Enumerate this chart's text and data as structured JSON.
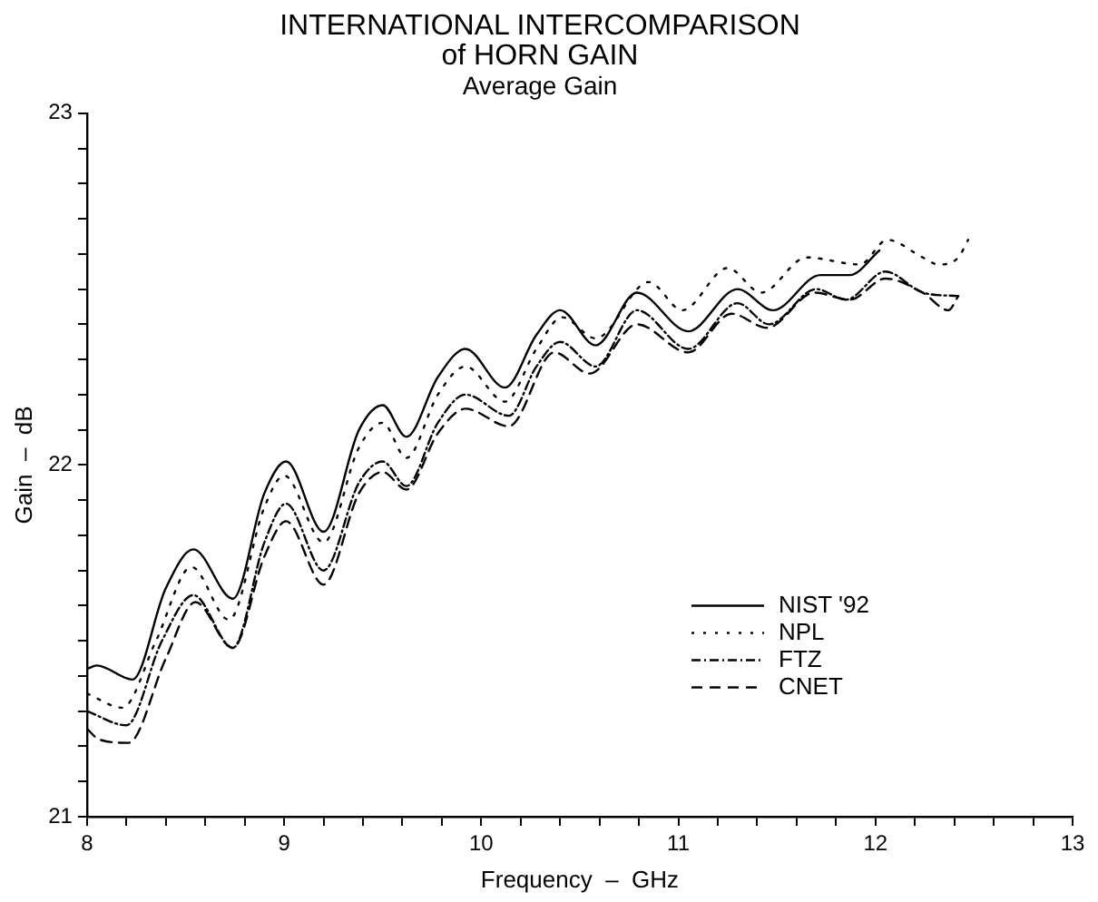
{
  "chart_data": {
    "type": "line",
    "title": "INTERNATIONAL INTERCOMPARISON\nof HORN GAIN",
    "subtitle": "Average Gain",
    "xlabel": "Frequency  –  GHz",
    "ylabel": "Gain  –  dB",
    "xlim": [
      8,
      13
    ],
    "ylim": [
      21,
      23
    ],
    "xticks": [
      8,
      {
        "value": 8.2,
        "label": null
      },
      {
        "value": 8.4,
        "label": null
      },
      {
        "value": 8.6,
        "label": null
      },
      {
        "value": 8.8,
        "label": null
      },
      9,
      {
        "value": 9.2,
        "label": null
      },
      {
        "value": 9.4,
        "label": null
      },
      {
        "value": 9.6,
        "label": null
      },
      {
        "value": 9.8,
        "label": null
      },
      10,
      {
        "value": 10.2,
        "label": null
      },
      {
        "value": 10.4,
        "label": null
      },
      {
        "value": 10.6,
        "label": null
      },
      {
        "value": 10.8,
        "label": null
      },
      11,
      {
        "value": 11.2,
        "label": null
      },
      {
        "value": 11.4,
        "label": null
      },
      {
        "value": 11.6,
        "label": null
      },
      {
        "value": 11.8,
        "label": null
      },
      12,
      {
        "value": 12.2,
        "label": null
      },
      {
        "value": 12.4,
        "label": null
      },
      {
        "value": 12.6,
        "label": null
      },
      {
        "value": 12.8,
        "label": null
      },
      13
    ],
    "yticks": [
      21,
      {
        "value": 21.1,
        "label": null
      },
      {
        "value": 21.2,
        "label": null
      },
      {
        "value": 21.3,
        "label": null
      },
      {
        "value": 21.4,
        "label": null
      },
      {
        "value": 21.5,
        "label": null
      },
      {
        "value": 21.6,
        "label": null
      },
      {
        "value": 21.7,
        "label": null
      },
      {
        "value": 21.8,
        "label": null
      },
      {
        "value": 21.9,
        "label": null
      },
      22,
      {
        "value": 22.1,
        "label": null
      },
      {
        "value": 22.2,
        "label": null
      },
      {
        "value": 22.3,
        "label": null
      },
      {
        "value": 22.4,
        "label": null
      },
      {
        "value": 22.5,
        "label": null
      },
      {
        "value": 22.6,
        "label": null
      },
      {
        "value": 22.7,
        "label": null
      },
      {
        "value": 22.8,
        "label": null
      },
      {
        "value": 22.9,
        "label": null
      },
      23
    ],
    "grid": false,
    "legend": "right",
    "marker": "none",
    "series": [
      {
        "name": "NIST '92",
        "color": "#000000",
        "line_style": "solid",
        "x": [
          8.0,
          8.05,
          8.23,
          8.4,
          8.54,
          8.74,
          8.9,
          9.01,
          9.2,
          9.38,
          9.5,
          9.62,
          9.78,
          9.92,
          10.12,
          10.28,
          10.4,
          10.58,
          10.79,
          11.05,
          11.3,
          11.48,
          11.72,
          11.87,
          12.02
        ],
        "values": [
          21.42,
          21.43,
          21.39,
          21.65,
          21.76,
          21.62,
          21.92,
          22.01,
          21.81,
          22.1,
          22.17,
          22.08,
          22.25,
          22.33,
          22.22,
          22.37,
          22.44,
          22.34,
          22.49,
          22.38,
          22.5,
          22.44,
          22.54,
          22.54,
          22.61
        ]
      },
      {
        "name": "NPL",
        "color": "#000000",
        "line_style": "dotted",
        "x": [
          8.0,
          8.18,
          8.35,
          8.53,
          8.72,
          8.9,
          9.0,
          9.2,
          9.38,
          9.5,
          9.62,
          9.78,
          9.92,
          10.12,
          10.28,
          10.41,
          10.58,
          10.85,
          11.02,
          11.25,
          11.42,
          11.65,
          11.92,
          12.06,
          12.24,
          12.32,
          12.42,
          12.47
        ],
        "values": [
          21.35,
          21.31,
          21.5,
          21.71,
          21.56,
          21.88,
          21.97,
          21.78,
          22.05,
          22.12,
          22.02,
          22.2,
          22.28,
          22.18,
          22.33,
          22.42,
          22.36,
          22.52,
          22.44,
          22.56,
          22.49,
          22.59,
          22.57,
          22.64,
          22.59,
          22.57,
          22.59,
          22.64
        ]
      },
      {
        "name": "FTZ",
        "color": "#000000",
        "line_style": "dashdot",
        "x": [
          8.0,
          8.2,
          8.38,
          8.54,
          8.74,
          8.9,
          9.01,
          9.2,
          9.38,
          9.5,
          9.62,
          9.78,
          9.92,
          10.14,
          10.28,
          10.4,
          10.58,
          10.79,
          11.05,
          11.3,
          11.46,
          11.7,
          11.85,
          12.05,
          12.24,
          12.42
        ],
        "values": [
          21.3,
          21.26,
          21.5,
          21.63,
          21.48,
          21.78,
          21.89,
          21.7,
          21.95,
          22.01,
          21.94,
          22.12,
          22.2,
          22.14,
          22.28,
          22.35,
          22.28,
          22.44,
          22.33,
          22.46,
          22.4,
          22.5,
          22.47,
          22.55,
          22.49,
          22.48
        ]
      },
      {
        "name": "CNET",
        "color": "#000000",
        "line_style": "dashed",
        "x": [
          8.0,
          8.06,
          8.21,
          8.4,
          8.55,
          8.74,
          8.9,
          9.01,
          9.2,
          9.38,
          9.5,
          9.62,
          9.78,
          9.92,
          10.14,
          10.37,
          10.55,
          10.79,
          11.05,
          11.27,
          11.45,
          11.69,
          11.87,
          12.05,
          12.24,
          12.37,
          12.42
        ],
        "values": [
          21.25,
          21.22,
          21.21,
          21.45,
          21.61,
          21.48,
          21.74,
          21.84,
          21.66,
          21.92,
          21.98,
          21.93,
          22.09,
          22.16,
          22.11,
          22.32,
          22.26,
          22.4,
          22.32,
          22.43,
          22.39,
          22.49,
          22.47,
          22.53,
          22.49,
          22.44,
          22.48
        ]
      }
    ]
  }
}
